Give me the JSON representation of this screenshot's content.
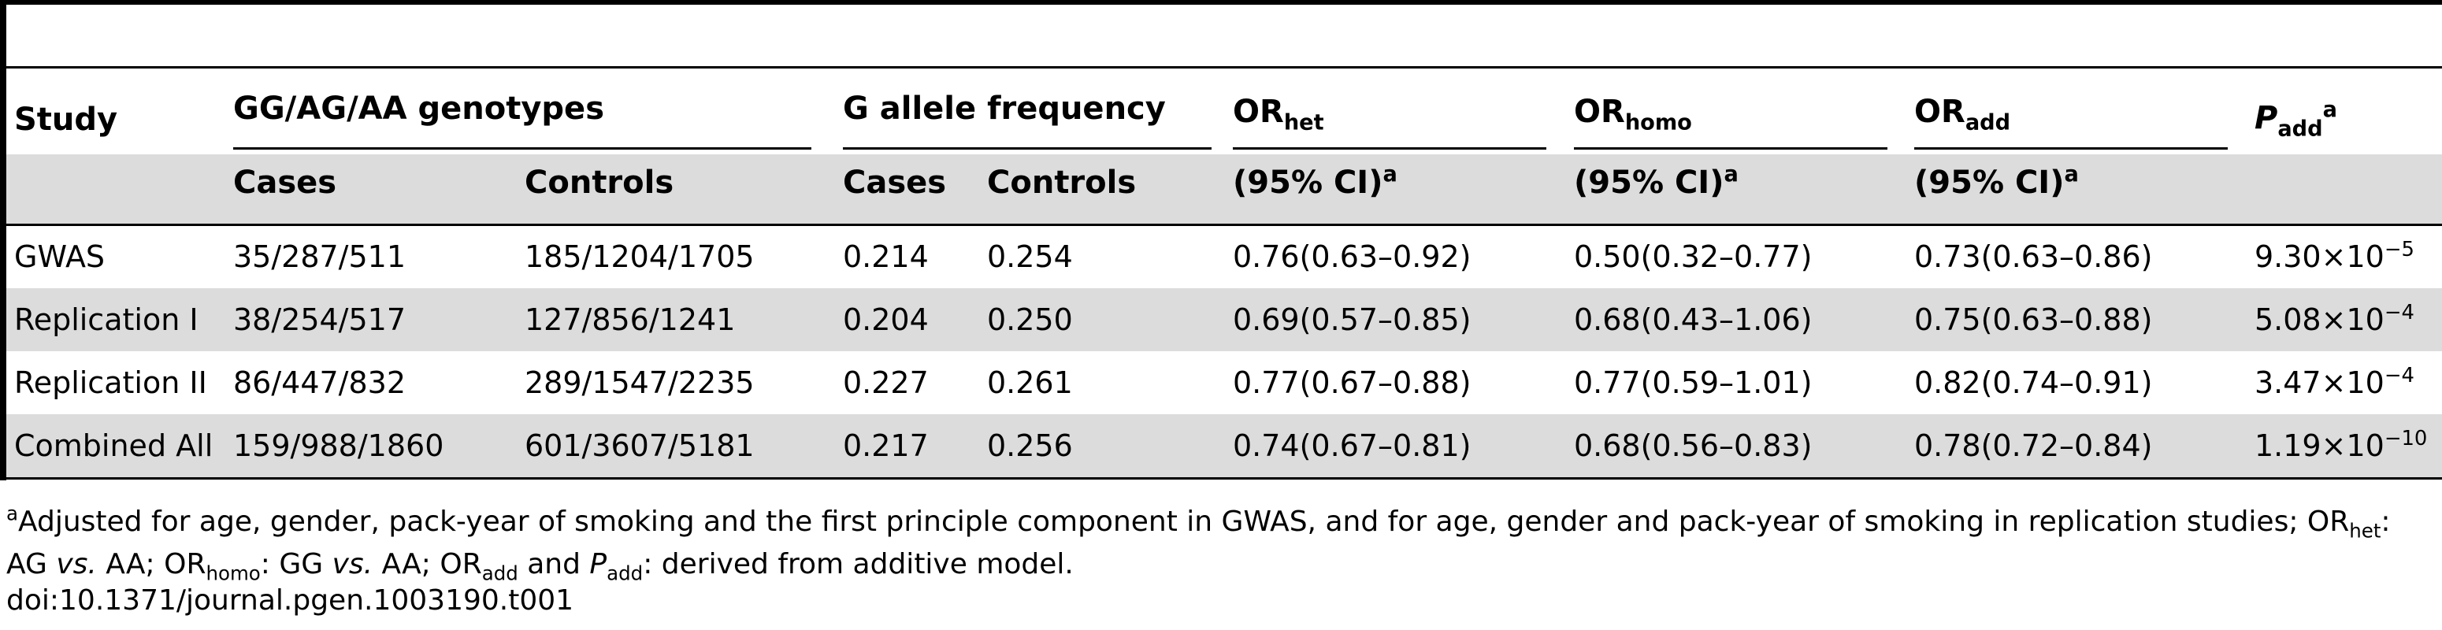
{
  "table": {
    "header": {
      "study": "Study",
      "genotypes": "GG/AG/AA genotypes",
      "allele_freq": "G allele frequency",
      "or_het_base": "OR",
      "or_het_sub": "het",
      "or_homo_base": "OR",
      "or_homo_sub": "homo",
      "or_add_base": "OR",
      "or_add_sub": "add",
      "p_add_base": "P",
      "p_add_sub": "add",
      "p_add_sup": "a",
      "cases": "Cases",
      "controls": "Controls",
      "ci": "(95% CI)",
      "ci_sup": "a"
    },
    "rows": [
      {
        "study": "GWAS",
        "cases_gt": "35/287/511",
        "controls_gt": "185/1204/1705",
        "cases_freq": "0.214",
        "controls_freq": "0.254",
        "or_het": "0.76(0.63–0.92)",
        "or_homo": "0.50(0.32–0.77)",
        "or_add": "0.73(0.63–0.86)",
        "p_mant": "9.30×10",
        "p_exp": "−5"
      },
      {
        "study": "Replication I",
        "cases_gt": "38/254/517",
        "controls_gt": "127/856/1241",
        "cases_freq": "0.204",
        "controls_freq": "0.250",
        "or_het": "0.69(0.57–0.85)",
        "or_homo": "0.68(0.43–1.06)",
        "or_add": "0.75(0.63–0.88)",
        "p_mant": "5.08×10",
        "p_exp": "−4"
      },
      {
        "study": "Replication II",
        "cases_gt": "86/447/832",
        "controls_gt": "289/1547/2235",
        "cases_freq": "0.227",
        "controls_freq": "0.261",
        "or_het": "0.77(0.67–0.88)",
        "or_homo": "0.77(0.59–1.01)",
        "or_add": "0.82(0.74–0.91)",
        "p_mant": "3.47×10",
        "p_exp": "−4"
      },
      {
        "study": "Combined All",
        "cases_gt": "159/988/1860",
        "controls_gt": "601/3607/5181",
        "cases_freq": "0.217",
        "controls_freq": "0.256",
        "or_het": "0.74(0.67–0.81)",
        "or_homo": "0.68(0.56–0.83)",
        "or_add": "0.78(0.72–0.84)",
        "p_mant": "1.19×10",
        "p_exp": "−10"
      }
    ]
  },
  "footnote": {
    "marker": "a",
    "line1_text": "Adjusted for age, gender, pack-year of smoking and the first principle component in GWAS, and for age, gender and pack-year of smoking in replication studies; OR",
    "line1_sub": "het",
    "line1_end": ":",
    "line2_a": "AG ",
    "line2_vs1": "vs.",
    "line2_b": " AA; OR",
    "line2_sub_homo": "homo",
    "line2_c": ": GG ",
    "line2_vs2": "vs.",
    "line2_d": " AA; OR",
    "line2_sub_add": "add",
    "line2_e": " and ",
    "line2_p": "P",
    "line2_p_sub": "add",
    "line2_f": ": derived from additive model.",
    "doi": "doi:10.1371/journal.pgen.1003190.t001"
  }
}
